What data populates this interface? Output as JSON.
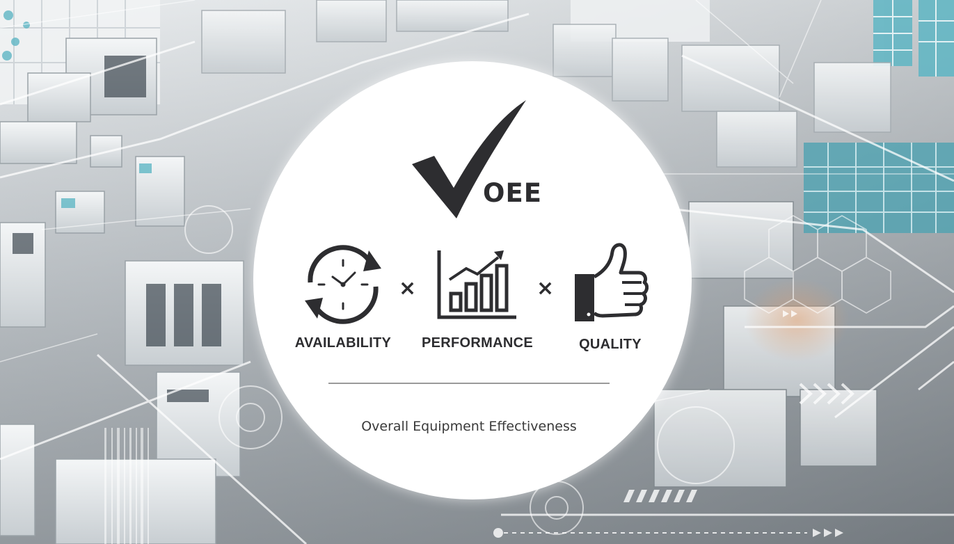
{
  "title": "OEE",
  "subtitle": "Overall Equipment Effectiveness",
  "operator_symbol": "×",
  "metrics": [
    {
      "label": "AVAILABILITY",
      "icon": "clock-cycle-icon"
    },
    {
      "label": "PERFORMANCE",
      "icon": "bar-chart-trend-icon"
    },
    {
      "label": "QUALITY",
      "icon": "thumbs-up-icon"
    }
  ],
  "colors": {
    "ink": "#2d2d30",
    "circle": "#ffffff",
    "divider": "#9a9a9a",
    "background_accent": "#5fb6c4"
  }
}
